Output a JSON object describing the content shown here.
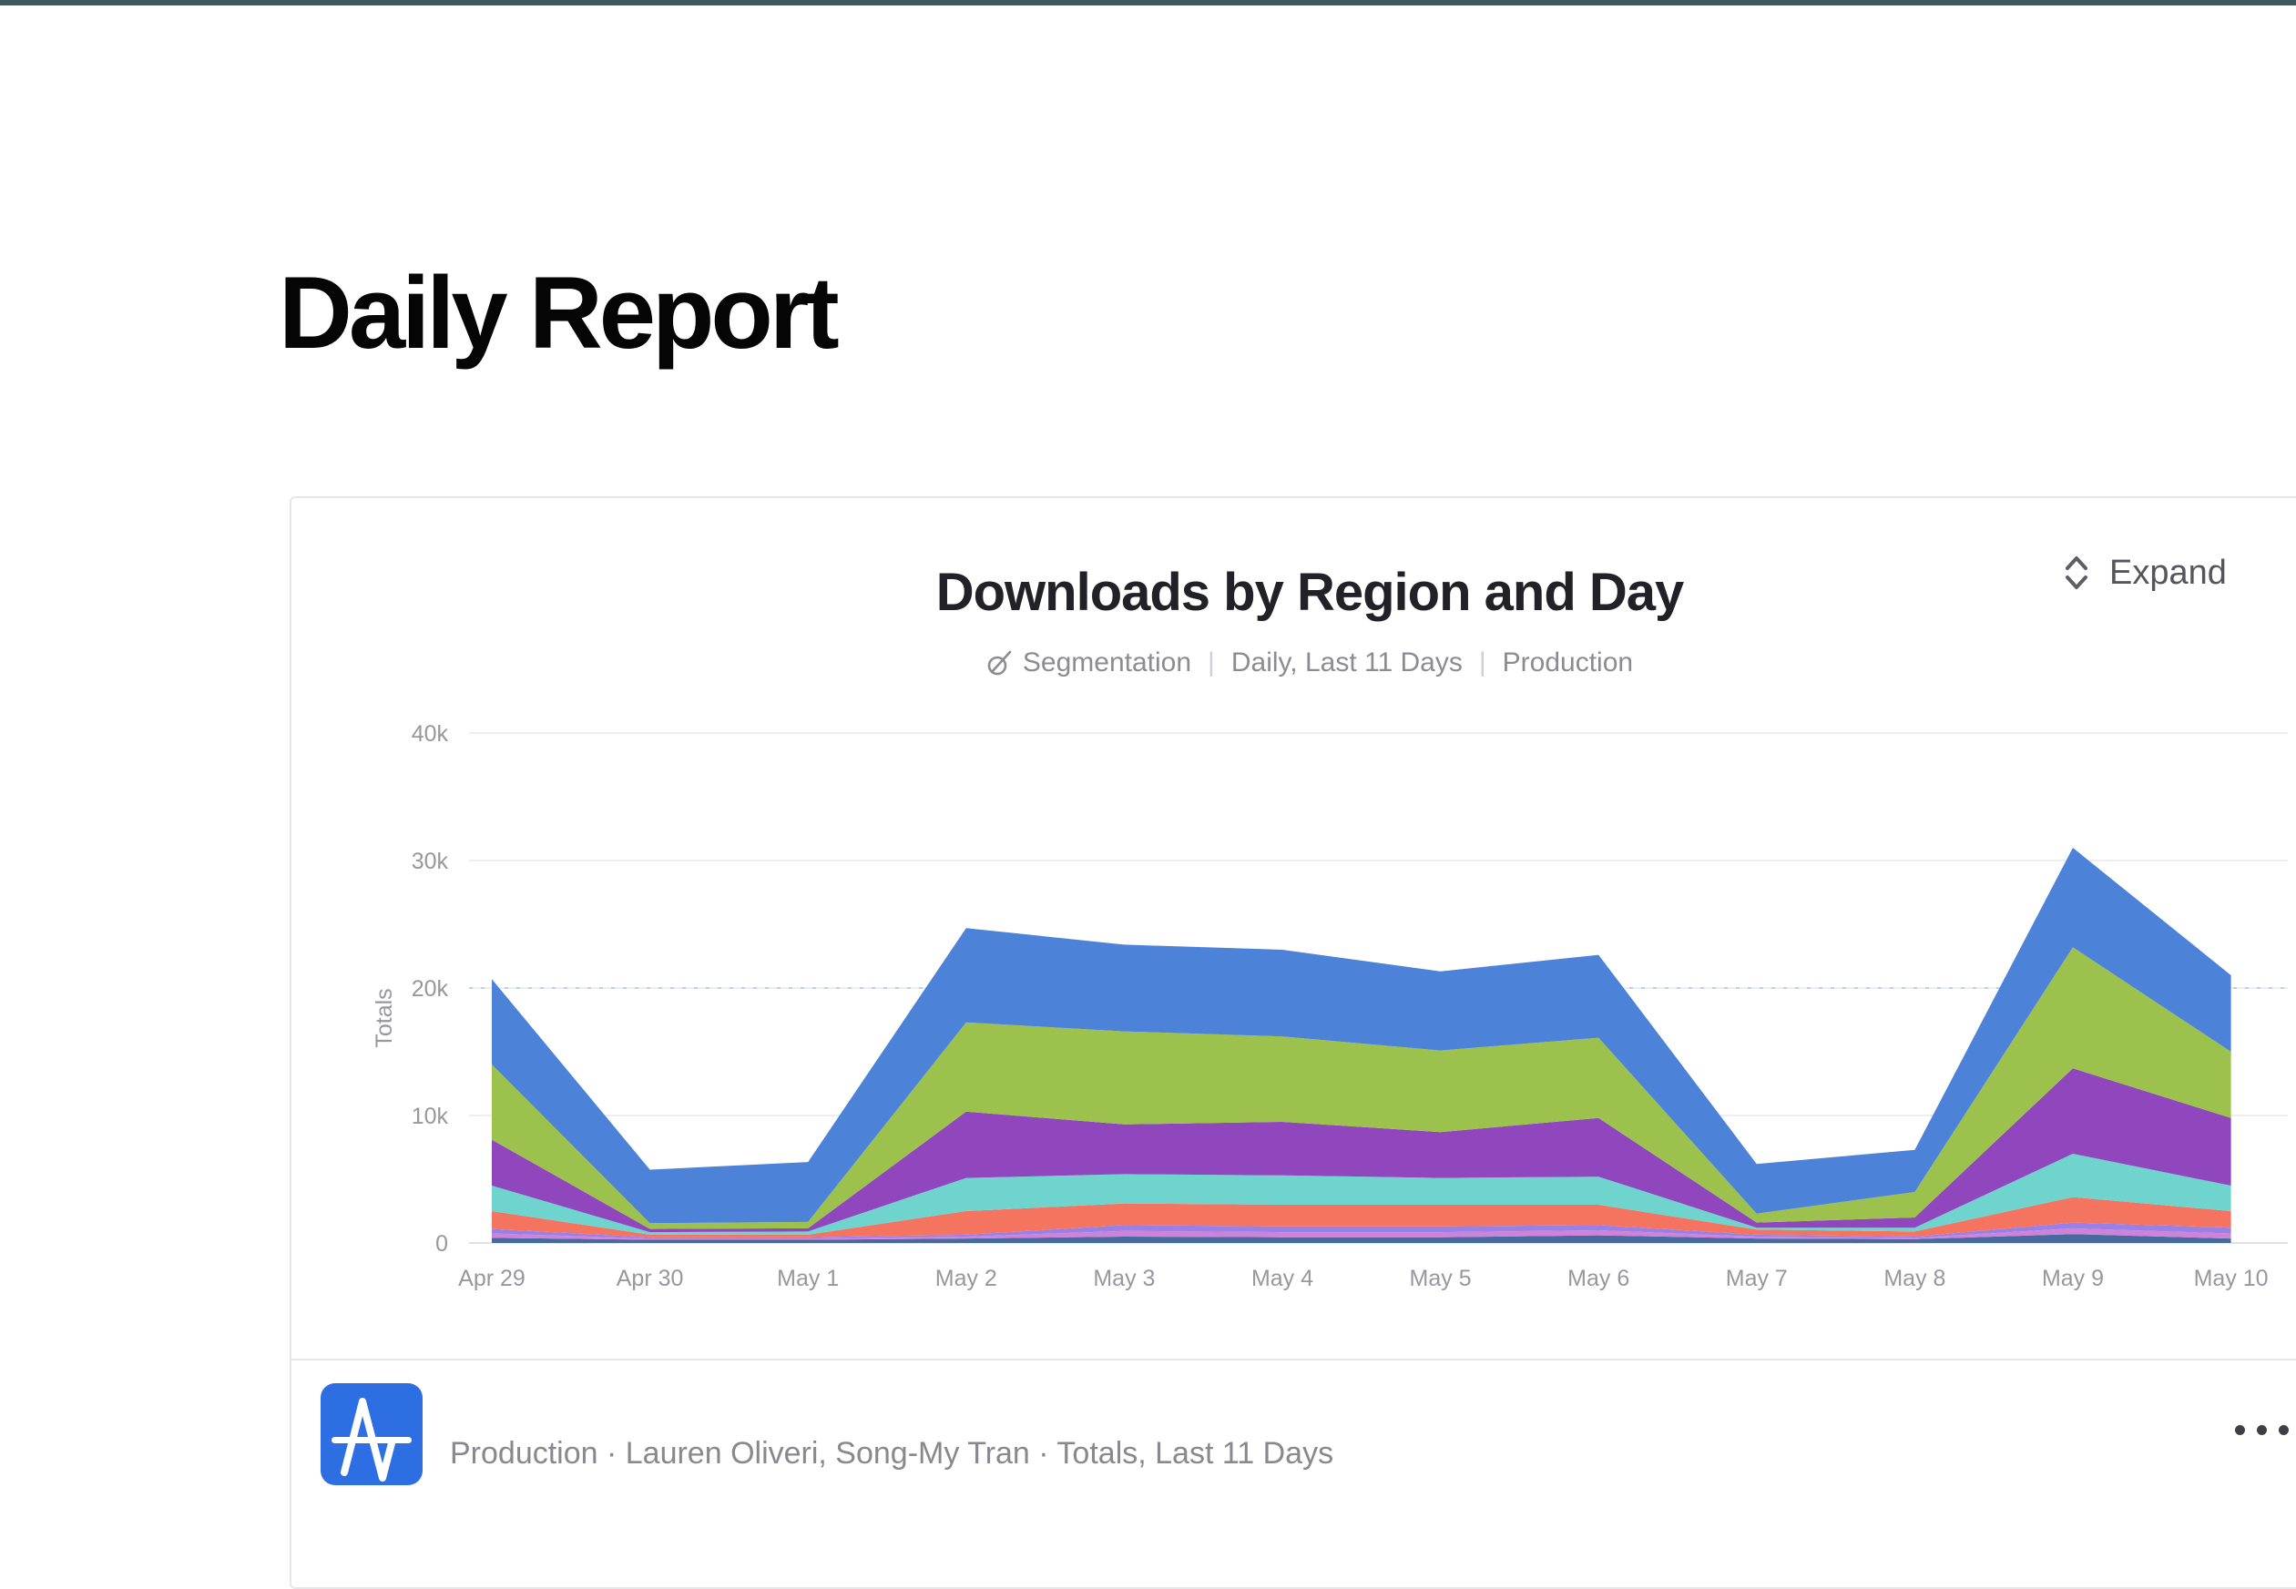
{
  "page": {
    "title": "Daily Report"
  },
  "theme": {
    "topbar_color": "#3d5b5b",
    "card_border": "#e6e6ea",
    "logo_blue": "#2d6fe3",
    "accent_reference_line": "#b7d1f5"
  },
  "card": {
    "title": "Downloads by Region and Day",
    "subtitle": {
      "chart_type": "Segmentation",
      "divider": "|",
      "range": "Daily, Last 11 Days",
      "env": "Production"
    },
    "expand_label": "Expand",
    "footer": {
      "summary": "Production · Lauren Oliveri, Song-My Tran · Totals, Last 11 Days"
    }
  },
  "chart_data": {
    "type": "area",
    "stacked": true,
    "title": "Downloads by Region and Day",
    "xlabel": "",
    "ylabel": "Totals",
    "ylim": [
      0,
      40000
    ],
    "y_ticks": [
      "0",
      "10k",
      "20k",
      "30k",
      "40k"
    ],
    "grid": true,
    "legend": "none",
    "categories": [
      "Apr 29",
      "Apr 30",
      "May 1",
      "May 2",
      "May 3",
      "May 4",
      "May 5",
      "May 6",
      "May 7",
      "May 8",
      "May 9",
      "May 10"
    ],
    "series": [
      {
        "name": "steel-blue",
        "color": "#47699c",
        "values": [
          400,
          250,
          250,
          350,
          500,
          450,
          450,
          600,
          350,
          300,
          700,
          350
        ]
      },
      {
        "name": "orchid",
        "color": "#cf82d9",
        "values": [
          350,
          100,
          100,
          150,
          450,
          400,
          400,
          400,
          150,
          100,
          450,
          400
        ]
      },
      {
        "name": "violet",
        "color": "#9a7fe6",
        "values": [
          350,
          100,
          100,
          150,
          450,
          450,
          450,
          400,
          150,
          100,
          450,
          450
        ]
      },
      {
        "name": "salmon",
        "color": "#f4745f",
        "values": [
          1400,
          200,
          200,
          1850,
          1700,
          1700,
          1700,
          1600,
          400,
          400,
          2000,
          1300
        ]
      },
      {
        "name": "teal",
        "color": "#6fd3ce",
        "values": [
          2000,
          200,
          250,
          2600,
          2300,
          2300,
          2100,
          2200,
          150,
          300,
          3400,
          2000
        ]
      },
      {
        "name": "purple",
        "color": "#9046bd",
        "values": [
          3600,
          250,
          250,
          5200,
          3900,
          4200,
          3600,
          4600,
          400,
          800,
          6700,
          5300
        ]
      },
      {
        "name": "green",
        "color": "#9cc24d",
        "values": [
          5900,
          450,
          500,
          7000,
          7300,
          6700,
          6400,
          6300,
          700,
          2000,
          9500,
          5200
        ]
      },
      {
        "name": "blue",
        "color": "#4d82d9",
        "values": [
          6700,
          4200,
          4700,
          7400,
          6800,
          6800,
          6200,
          6500,
          3900,
          3300,
          7800,
          6000
        ]
      }
    ]
  }
}
